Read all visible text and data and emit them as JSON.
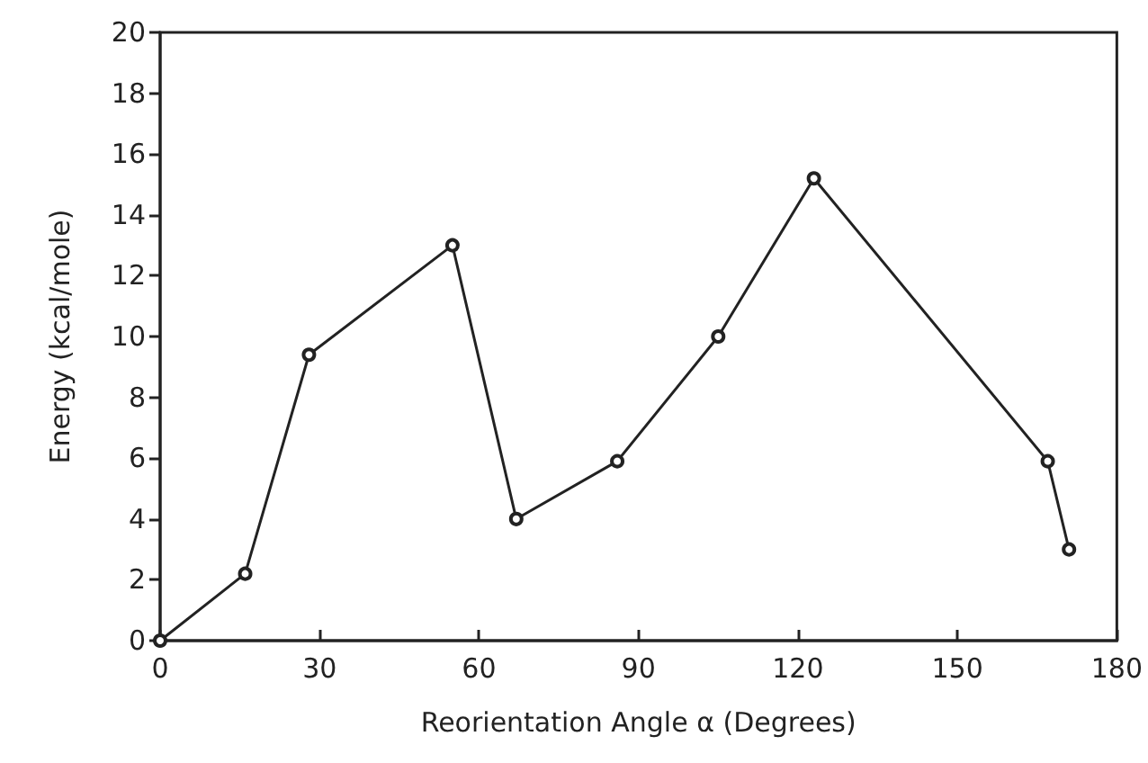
{
  "chart_data": {
    "type": "line",
    "xlabel": "Reorientation Angle α (Degrees)",
    "ylabel": "Energy (kcal/mole)",
    "x": [
      0,
      16,
      28,
      55,
      67,
      86,
      105,
      123,
      167,
      171
    ],
    "series": [
      {
        "color": "#222222",
        "values": [
          0,
          2.2,
          9.4,
          13.0,
          4.0,
          5.9,
          10.0,
          15.2,
          5.9,
          3.0
        ]
      }
    ],
    "xlim": [
      0,
      180
    ],
    "xticks": [
      0,
      30,
      60,
      90,
      120,
      150,
      180
    ],
    "ylim": [
      0,
      20
    ],
    "yticks": [
      0,
      2,
      4,
      6,
      8,
      10,
      12,
      14,
      16,
      18,
      20
    ],
    "marker": "circle",
    "line_style": "solid"
  }
}
